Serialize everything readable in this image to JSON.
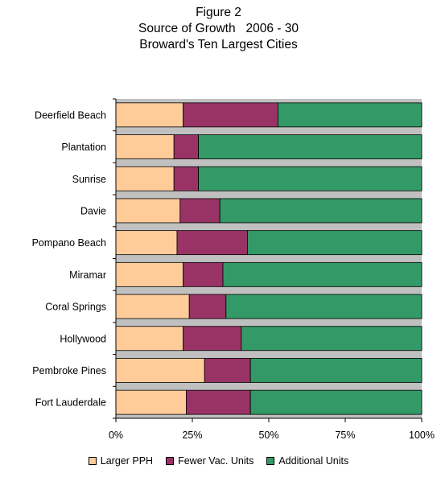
{
  "chart_data": {
    "type": "bar",
    "orientation": "horizontal",
    "stacked": true,
    "percent": true,
    "title_lines": [
      "Figure 2",
      "Source of Growth   2006 - 30",
      "Broward's Ten Largest Cities"
    ],
    "categories": [
      "Deerfield Beach",
      "Plantation",
      "Sunrise",
      "Davie",
      "Pompano Beach",
      "Miramar",
      "Coral Springs",
      "Hollywood",
      "Pembroke Pines",
      "Fort Lauderdale"
    ],
    "series": [
      {
        "name": "Larger PPH",
        "color": "#FFCC99",
        "values": [
          22,
          19,
          19,
          21,
          20,
          22,
          24,
          22,
          29,
          23
        ]
      },
      {
        "name": "Fewer Vac. Units",
        "color": "#993366",
        "values": [
          31,
          8,
          8,
          13,
          23,
          13,
          12,
          19,
          15,
          21
        ]
      },
      {
        "name": "Additional Units",
        "color": "#339966",
        "values": [
          47,
          73,
          73,
          66,
          57,
          65,
          64,
          59,
          56,
          56
        ]
      }
    ],
    "x_ticks": [
      "0%",
      "25%",
      "50%",
      "75%",
      "100%"
    ],
    "xlim": [
      0,
      100
    ],
    "plot_background": "#C0C0C0",
    "legend_position": "bottom"
  }
}
